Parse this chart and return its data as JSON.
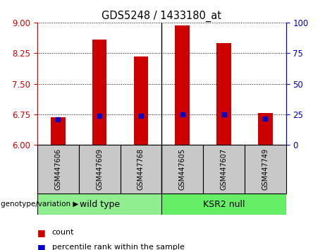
{
  "title": "GDS5248 / 1433180_at",
  "samples": [
    "GSM447606",
    "GSM447609",
    "GSM447768",
    "GSM447605",
    "GSM447607",
    "GSM447749"
  ],
  "bar_values": [
    6.68,
    8.58,
    8.17,
    8.93,
    8.5,
    6.78
  ],
  "percentile_values": [
    6.62,
    6.72,
    6.72,
    6.75,
    6.75,
    6.64
  ],
  "bar_bottom": 6.0,
  "ylim_left": [
    6.0,
    9.0
  ],
  "ylim_right": [
    0,
    100
  ],
  "yticks_left": [
    6,
    6.75,
    7.5,
    8.25,
    9
  ],
  "yticks_right": [
    0,
    25,
    50,
    75,
    100
  ],
  "bar_color": "#CC0000",
  "percentile_color": "#0000CC",
  "background_color": "#FFFFFF",
  "sample_box_color": "#C8C8C8",
  "wt_color": "#90EE90",
  "ksr_color": "#66EE66",
  "left_tick_color": "#CC0000",
  "right_tick_color": "#0000BB",
  "legend_count": "count",
  "legend_percentile": "percentile rank within the sample",
  "genotype_label": "genotype/variation"
}
